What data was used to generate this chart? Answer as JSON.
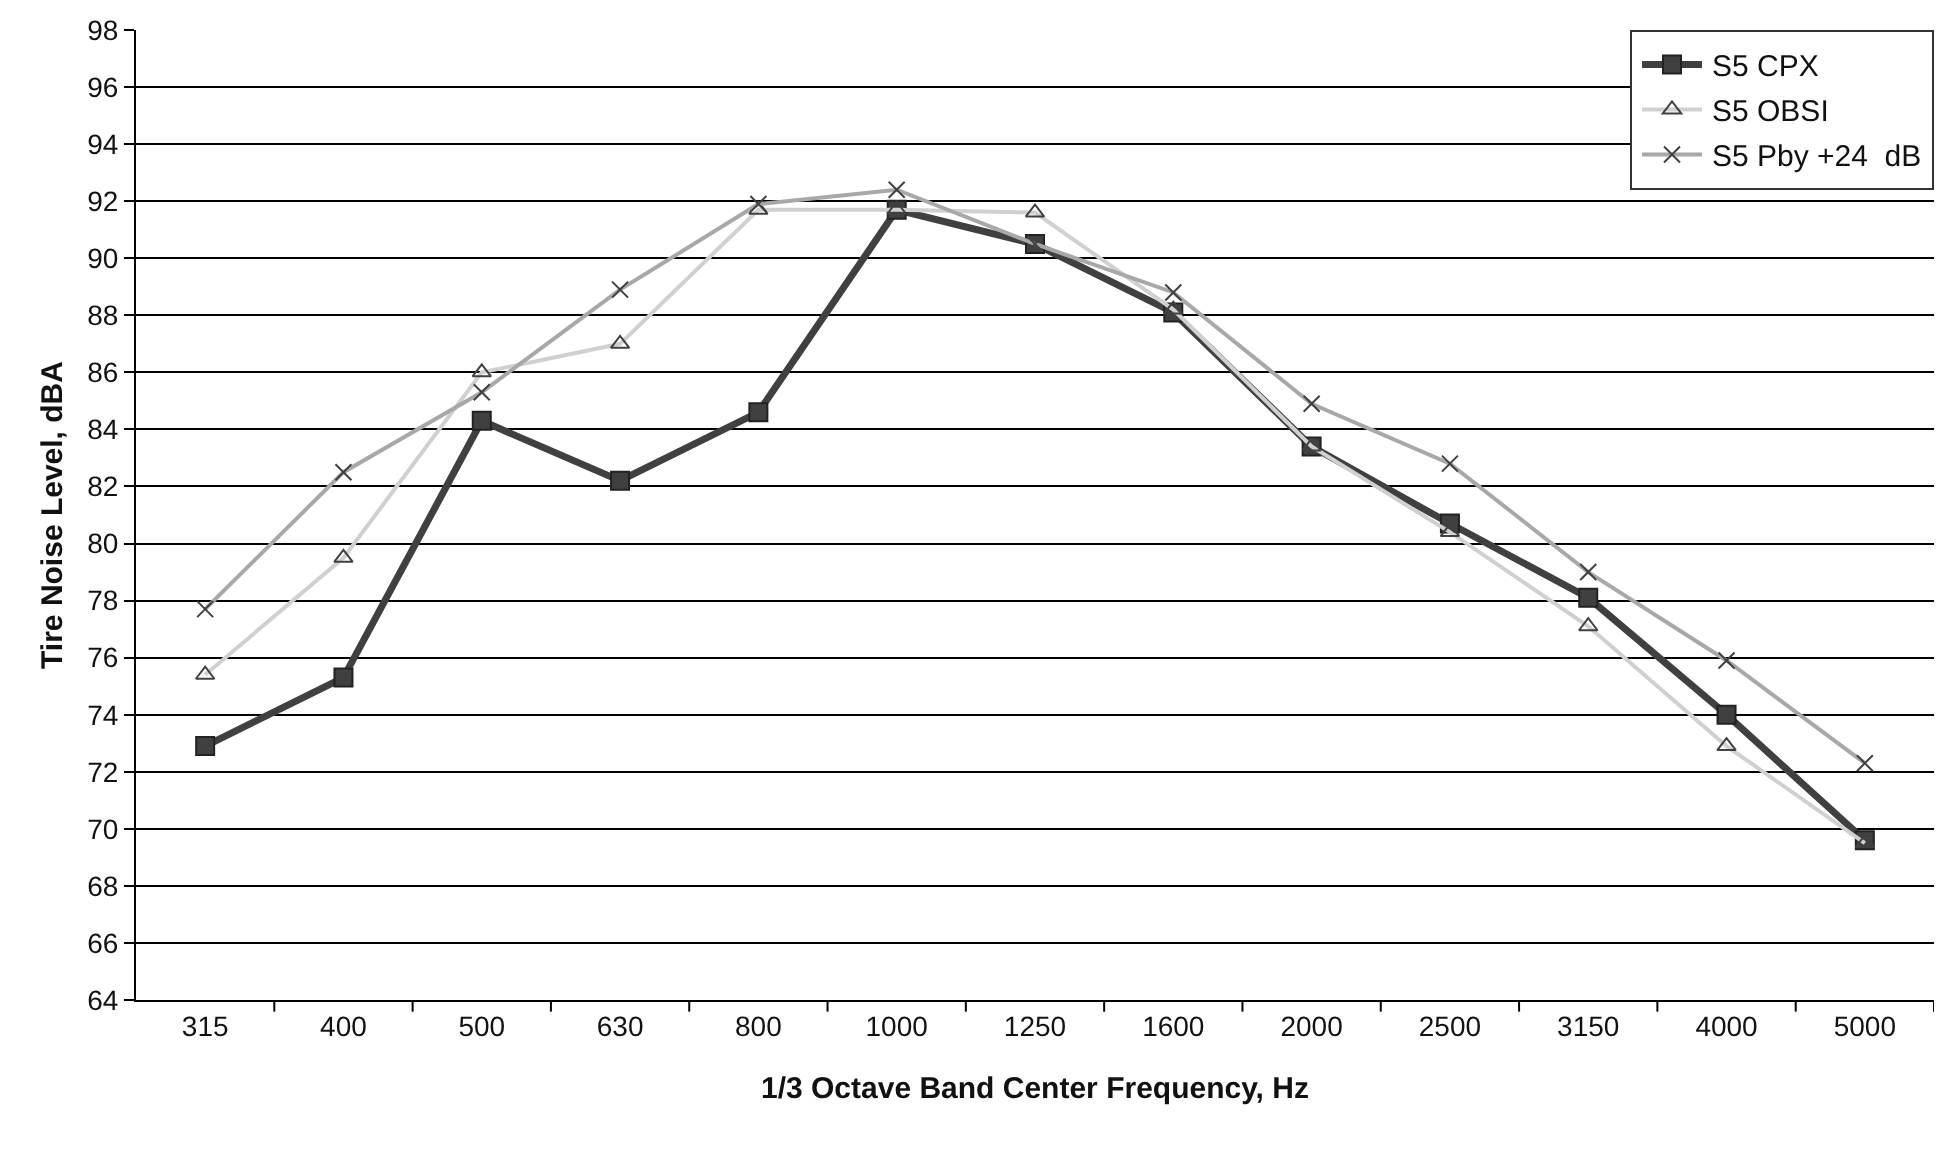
{
  "chart_data": {
    "type": "line",
    "xlabel": "1/3 Octave Band Center Frequency, Hz",
    "ylabel": "Tire Noise Level, dBA",
    "categories": [
      "315",
      "400",
      "500",
      "630",
      "800",
      "1000",
      "1250",
      "1600",
      "2000",
      "2500",
      "3150",
      "4000",
      "5000"
    ],
    "series": [
      {
        "name": "S5 CPX",
        "color": "#404040",
        "marker": "square",
        "values": [
          72.9,
          75.3,
          84.3,
          82.2,
          84.6,
          91.7,
          90.5,
          88.1,
          83.4,
          80.7,
          78.1,
          74.0,
          69.6
        ]
      },
      {
        "name": "S5 OBSI",
        "color": "#d0d0d0",
        "marker": "triangle",
        "values": [
          75.4,
          79.5,
          86.0,
          87.0,
          91.7,
          91.7,
          91.6,
          88.2,
          83.4,
          80.4,
          77.1,
          72.9,
          69.5
        ]
      },
      {
        "name": "S5 Pby +24  dB",
        "color": "#a8a8a8",
        "marker": "cross",
        "values": [
          77.7,
          82.5,
          85.3,
          88.9,
          91.9,
          92.4,
          90.5,
          88.8,
          84.9,
          82.8,
          79.0,
          75.9,
          72.3
        ]
      }
    ],
    "ylim": [
      64,
      98
    ],
    "yticks": [
      64,
      66,
      68,
      70,
      72,
      74,
      76,
      78,
      80,
      82,
      84,
      86,
      88,
      90,
      92,
      94,
      96,
      98
    ],
    "grid": "y",
    "legend": "top right",
    "line_style": "solid"
  }
}
